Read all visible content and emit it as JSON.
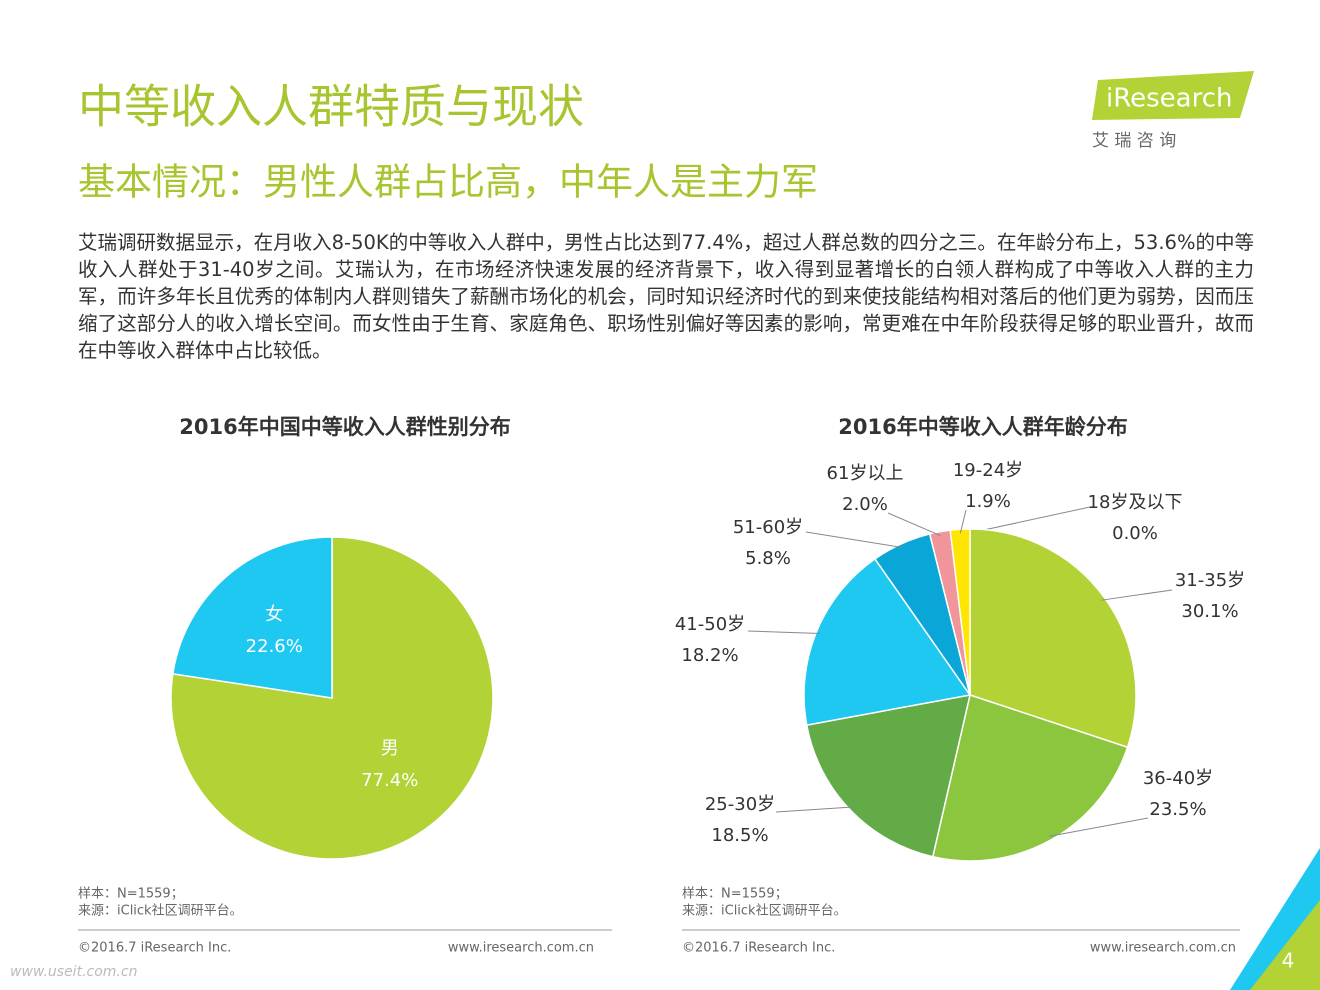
{
  "title": "中等收入人群特质与现状",
  "subtitle": "基本情况：男性人群占比高，中年人是主力军",
  "body": "艾瑞调研数据显示，在月收入8-50K的中等收入人群中，男性占比达到77.4%，超过人群总数的四分之三。在年龄分布上，53.6%的中等收入人群处于31-40岁之间。艾瑞认为，在市场经济快速发展的经济背景下，收入得到显著增长的白领人群构成了中等收入人群的主力军，而许多年长且优秀的体制内人群则错失了薪酬市场化的机会，同时知识经济时代的到来使技能结构相对落后的他们更为弱势，因而压缩了这部分人的收入增长空间。而女性由于生育、家庭角色、职场性别偏好等因素的影响，常更难在中年阶段获得足够的职业晋升，故而在中等收入群体中占比较低。",
  "logo": {
    "brand": "iResearch",
    "cn": "艾 瑞 咨 询"
  },
  "footers": [
    {
      "notes": [
        "样本：N=1559；",
        "来源：iClick社区调研平台。"
      ],
      "copyright": "©2016.7 iResearch Inc.",
      "url": "www.iresearch.com.cn"
    },
    {
      "notes": [
        "样本：N=1559；",
        "来源：iClick社区调研平台。"
      ],
      "copyright": "©2016.7 iResearch Inc.",
      "url": "www.iresearch.com.cn"
    }
  ],
  "page_number": "4",
  "watermark": "www.useit.com.cn",
  "chart_data": [
    {
      "type": "pie",
      "title": "2016年中国中等收入人群性别分布",
      "categories": [
        "男",
        "女"
      ],
      "values": [
        77.4,
        22.6
      ],
      "value_labels": [
        "77.4%",
        "22.6%"
      ],
      "colors": [
        "#b2d235",
        "#1ec8f0"
      ]
    },
    {
      "type": "pie",
      "title": "2016年中等收入人群年龄分布",
      "categories": [
        "18岁及以下",
        "31-35岁",
        "36-40岁",
        "25-30岁",
        "41-50岁",
        "51-60岁",
        "61岁以上",
        "19-24岁"
      ],
      "values": [
        0.0,
        30.1,
        23.5,
        18.5,
        18.2,
        5.8,
        2.0,
        1.9
      ],
      "value_labels": [
        "0.0%",
        "30.1%",
        "23.5%",
        "18.5%",
        "18.2%",
        "5.8%",
        "2.0%",
        "1.9%"
      ],
      "colors": [
        "#c8c8c8",
        "#b2d235",
        "#8cc63f",
        "#62ab47",
        "#1ec8f0",
        "#0aa6d8",
        "#f0969a",
        "#ffe600"
      ]
    }
  ]
}
